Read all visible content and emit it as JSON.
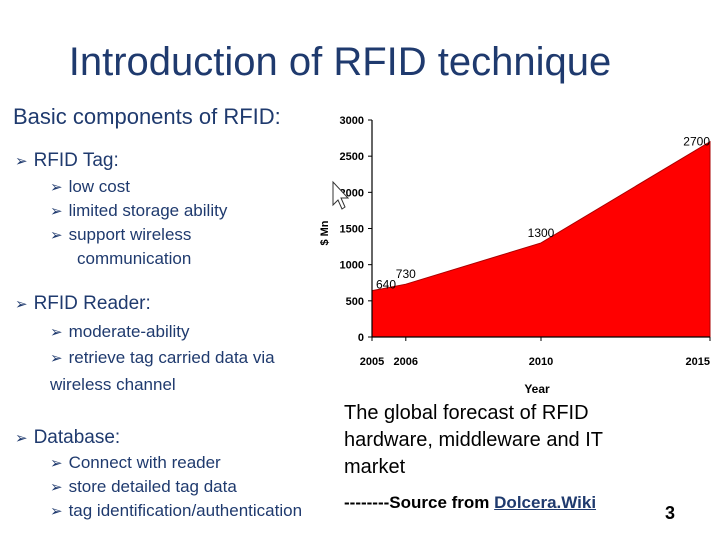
{
  "slide": {
    "title": "Introduction of RFID technique",
    "subtitle": "Basic components of RFID:",
    "sections": [
      {
        "heading": "RFID Tag:",
        "items": [
          "low cost",
          "limited storage ability",
          "support wireless",
          "communication"
        ]
      },
      {
        "heading": "RFID Reader:",
        "items": [
          "moderate-ability",
          "retrieve tag carried data via",
          "wireless channel"
        ]
      },
      {
        "heading": "Database:",
        "items": [
          "Connect with reader",
          "store detailed tag data",
          "tag identification/authentication"
        ]
      }
    ],
    "caption": [
      "The global forecast of RFID",
      "hardware, middleware and IT",
      "market"
    ],
    "source_prefix": "--------Source from ",
    "source_link": "Dolcera.Wiki",
    "page_number": "3",
    "colors": {
      "text": "#1f3a6e",
      "fill": "#ff0000"
    },
    "icons": [
      "arrow-bullet-icon",
      "cursor-icon"
    ]
  },
  "chart_data": {
    "type": "area",
    "x": [
      "2005",
      "2006",
      "2010",
      "2015"
    ],
    "values": [
      640,
      730,
      1300,
      2700
    ],
    "data_labels": [
      "640",
      "730",
      "1300",
      "2700"
    ],
    "ylabel": "$ Mn",
    "xlabel": "Year",
    "ylim": [
      0,
      3000
    ],
    "yticks": [
      "0",
      "500",
      "1000",
      "1500",
      "2000",
      "2500",
      "3000"
    ],
    "color": "#ff0000"
  }
}
